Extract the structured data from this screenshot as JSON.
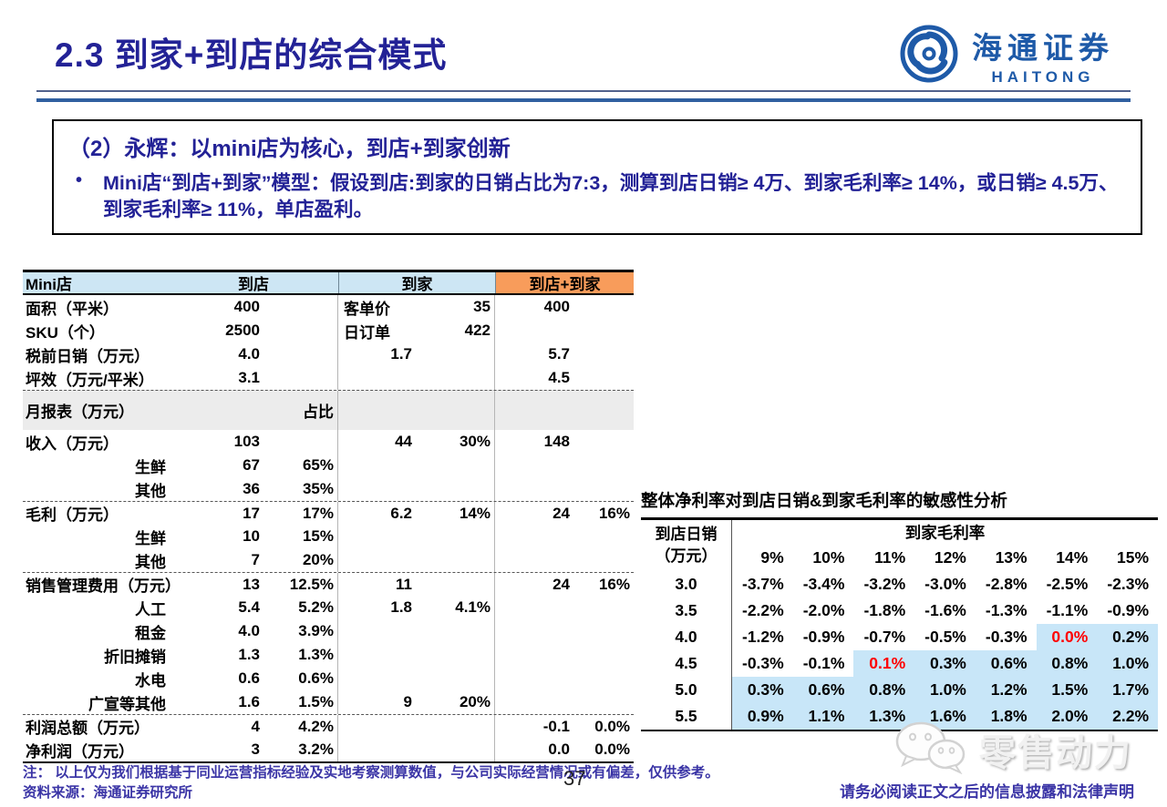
{
  "slide": {
    "title": "2.3 到家+到店的综合模式",
    "page_number": "37",
    "note_line1": "注： 以上仅为我们根据基于同业运营指标经验及实地考察测算数值，与公司实际经营情况或有偏差，仅供参考。",
    "note_line2": "资料来源：海通证券研究所",
    "disclaimer": "请务必阅读正文之后的信息披露和法律声明"
  },
  "logo": {
    "cn": "海通证券",
    "en": "HAITONG"
  },
  "watermark": {
    "text": "零售动力"
  },
  "info_box": {
    "heading": "（2）永辉：以mini店为核心，到店+到家创新",
    "bullet_marker": "•",
    "bullet": "Mini店“到店+到家”模型：假设到店:到家的日销占比为7:3，测算到店日销≥ 4万、到家毛利率≥ 14%，或日销≥ 4.5万、到家毛利率≥ 11%，单店盈利。"
  },
  "main_table": {
    "header": {
      "c1": "Mini店",
      "store": "到店",
      "home": "到家",
      "combined": "到店+到家"
    },
    "rows": [
      {
        "label": "面积（平米）",
        "sv": "400",
        "sp": "",
        "bl": "客单价",
        "bl_text": true,
        "br": "35",
        "tv": "400",
        "tp": ""
      },
      {
        "label": "SKU（个）",
        "sv": "2500",
        "sp": "",
        "bl": "日订单",
        "bl_text": true,
        "br": "422",
        "tv": "",
        "tp": ""
      },
      {
        "label": "税前日销（万元）",
        "sv": "4.0",
        "sp": "",
        "bl": "1.7",
        "br": "",
        "tv": "5.7",
        "tp": ""
      },
      {
        "label": "坪效（万元/平米）",
        "sv": "3.1",
        "sp": "",
        "bl": "",
        "br": "",
        "tv": "4.5",
        "tp": ""
      },
      {
        "label": "月报表（万元）",
        "gray": true,
        "dashed": true,
        "sv": "",
        "sp": "占比",
        "bl": "",
        "br": "",
        "tv": "",
        "tp": ""
      },
      {
        "label": "收入（万元）",
        "sv": "103",
        "sp": "",
        "bl": "44",
        "br": "30%",
        "tv": "148",
        "tp": ""
      },
      {
        "label": "生鲜",
        "indent": true,
        "sv": "67",
        "sp": "65%",
        "bl": "",
        "br": "",
        "tv": "",
        "tp": ""
      },
      {
        "label": "其他",
        "indent": true,
        "sv": "36",
        "sp": "35%",
        "bl": "",
        "br": "",
        "tv": "",
        "tp": ""
      },
      {
        "label": "毛利（万元）",
        "dashed": true,
        "sv": "17",
        "sp": "17%",
        "bl": "6.2",
        "br": "14%",
        "tv": "24",
        "tp": "16%"
      },
      {
        "label": "生鲜",
        "indent": true,
        "sv": "10",
        "sp": "15%",
        "bl": "",
        "br": "",
        "tv": "",
        "tp": ""
      },
      {
        "label": "其他",
        "indent": true,
        "sv": "7",
        "sp": "20%",
        "bl": "",
        "br": "",
        "tv": "",
        "tp": ""
      },
      {
        "label": "销售管理费用（万元）",
        "dashed": true,
        "sv": "13",
        "sp": "12.5%",
        "bl": "11",
        "br": "",
        "tv": "24",
        "tp": "16%"
      },
      {
        "label": "人工",
        "indent": true,
        "sv": "5.4",
        "sp": "5.2%",
        "bl": "1.8",
        "br": "4.1%",
        "tv": "",
        "tp": ""
      },
      {
        "label": "租金",
        "indent": true,
        "sv": "4.0",
        "sp": "3.9%",
        "bl": "",
        "br": "",
        "tv": "",
        "tp": ""
      },
      {
        "label": "折旧摊销",
        "indent": true,
        "sv": "1.3",
        "sp": "1.3%",
        "bl": "",
        "br": "",
        "tv": "",
        "tp": ""
      },
      {
        "label": "水电",
        "indent": true,
        "sv": "0.6",
        "sp": "0.6%",
        "bl": "",
        "br": "",
        "tv": "",
        "tp": ""
      },
      {
        "label": "广宣等其他",
        "indent": true,
        "sv": "1.6",
        "sp": "1.5%",
        "bl": "9",
        "br": "20%",
        "tv": "",
        "tp": ""
      },
      {
        "label": "利润总额（万元）",
        "dashed": true,
        "sv": "4",
        "sp": "4.2%",
        "bl": "",
        "br": "",
        "tv": "-0.1",
        "tp": "0.0%"
      },
      {
        "label": "净利润（万元）",
        "sv": "3",
        "sp": "3.2%",
        "bl": "",
        "br": "",
        "tv": "0.0",
        "tp": "0.0%"
      }
    ]
  },
  "sensitivity_table": {
    "title": "整体净利率对到店日销&到家毛利率的敏感性分析",
    "row_header_line1": "到店日销",
    "row_header_line2": "（万元）",
    "col_group": "到家毛利率",
    "columns": [
      "9%",
      "10%",
      "11%",
      "12%",
      "13%",
      "14%",
      "15%"
    ],
    "rows": [
      {
        "label": "3.0",
        "values": [
          "-3.7%",
          "-3.4%",
          "-3.2%",
          "-3.0%",
          "-2.8%",
          "-2.5%",
          "-2.3%"
        ],
        "hl_start": null,
        "red_idx": null
      },
      {
        "label": "3.5",
        "values": [
          "-2.2%",
          "-2.0%",
          "-1.8%",
          "-1.6%",
          "-1.3%",
          "-1.1%",
          "-0.9%"
        ],
        "hl_start": null,
        "red_idx": null
      },
      {
        "label": "4.0",
        "values": [
          "-1.2%",
          "-0.9%",
          "-0.7%",
          "-0.5%",
          "-0.3%",
          "0.0%",
          "0.2%"
        ],
        "hl_start": 5,
        "red_idx": 5
      },
      {
        "label": "4.5",
        "values": [
          "-0.3%",
          "-0.1%",
          "0.1%",
          "0.3%",
          "0.6%",
          "0.8%",
          "1.0%"
        ],
        "hl_start": 2,
        "red_idx": 2
      },
      {
        "label": "5.0",
        "values": [
          "0.3%",
          "0.6%",
          "0.8%",
          "1.0%",
          "1.2%",
          "1.5%",
          "1.7%"
        ],
        "hl_start": 0,
        "red_idx": null
      },
      {
        "label": "5.5",
        "values": [
          "0.9%",
          "1.1%",
          "1.3%",
          "1.6%",
          "1.8%",
          "2.0%",
          "2.2%"
        ],
        "hl_start": 0,
        "red_idx": null
      }
    ]
  },
  "colors": {
    "title_blue": "#232296",
    "footer_blue": "#3B35A6",
    "haitong_blue": "#1E5AA8",
    "header_blue": "#CDE6F4",
    "header_orange": "#F89C5B",
    "highlight_blue": "#C8E6F8",
    "gray_band": "#ECECEC",
    "negative_red": "#FF0000"
  }
}
